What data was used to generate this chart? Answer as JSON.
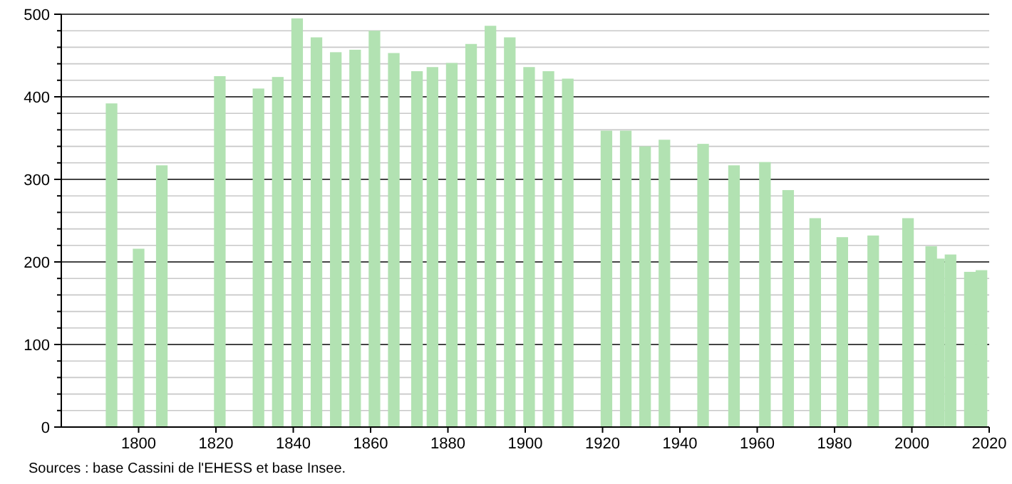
{
  "chart_data": {
    "type": "bar",
    "x": [
      1793,
      1800,
      1806,
      1821,
      1831,
      1836,
      1841,
      1846,
      1851,
      1856,
      1861,
      1866,
      1872,
      1876,
      1881,
      1886,
      1891,
      1896,
      1901,
      1906,
      1911,
      1921,
      1926,
      1931,
      1936,
      1946,
      1954,
      1962,
      1968,
      1975,
      1982,
      1990,
      1999,
      2005,
      2007,
      2010,
      2015,
      2018
    ],
    "values": [
      392,
      216,
      317,
      425,
      410,
      424,
      495,
      472,
      454,
      457,
      480,
      453,
      431,
      436,
      441,
      464,
      486,
      472,
      436,
      431,
      422,
      359,
      359,
      340,
      348,
      343,
      317,
      321,
      287,
      253,
      230,
      232,
      253,
      219,
      204,
      209,
      188,
      190
    ],
    "color": "#b2e2b2",
    "xlim": [
      1780,
      2020
    ],
    "xticks": [
      1800,
      1820,
      1840,
      1860,
      1880,
      1900,
      1920,
      1940,
      1960,
      1980,
      2000,
      2020
    ],
    "ylim": [
      0,
      500
    ],
    "yticks": [
      0,
      {
        "value": 20,
        "label": null
      },
      {
        "value": 40,
        "label": null
      },
      {
        "value": 60,
        "label": null
      },
      {
        "value": 80,
        "label": null
      },
      100,
      {
        "value": 120,
        "label": null
      },
      {
        "value": 140,
        "label": null
      },
      {
        "value": 160,
        "label": null
      },
      {
        "value": 180,
        "label": null
      },
      200,
      {
        "value": 220,
        "label": null
      },
      {
        "value": 240,
        "label": null
      },
      {
        "value": 260,
        "label": null
      },
      {
        "value": 280,
        "label": null
      },
      300,
      {
        "value": 320,
        "label": null
      },
      {
        "value": 340,
        "label": null
      },
      {
        "value": 360,
        "label": null
      },
      {
        "value": 380,
        "label": null
      },
      400,
      {
        "value": 420,
        "label": null
      },
      {
        "value": 440,
        "label": null
      },
      {
        "value": 460,
        "label": null
      },
      {
        "value": 480,
        "label": null
      },
      500
    ],
    "grid": "y",
    "annotations": [
      "Sources : base Cassini de l'EHESS et base Insee."
    ]
  }
}
